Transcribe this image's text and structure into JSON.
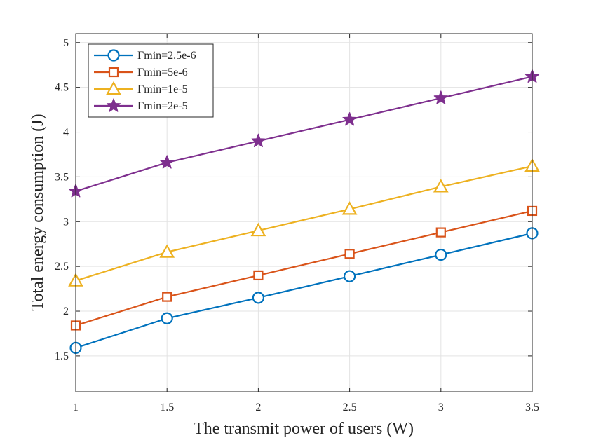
{
  "chart_data": {
    "type": "line",
    "title": "",
    "xlabel": "The transmit power of users (W)",
    "ylabel": "Total energy consumption (J)",
    "xlim": [
      1,
      3.5
    ],
    "ylim": [
      1.1,
      5.1
    ],
    "xticks": [
      1,
      1.5,
      2,
      2.5,
      3,
      3.5
    ],
    "xtick_labels": [
      "1",
      "1.5",
      "2",
      "2.5",
      "3",
      "3.5"
    ],
    "yticks": [
      1.5,
      2,
      2.5,
      3,
      3.5,
      4,
      4.5,
      5
    ],
    "ytick_labels": [
      "1.5",
      "2",
      "2.5",
      "3",
      "3.5",
      "4",
      "4.5",
      "5"
    ],
    "grid": true,
    "legend_position": "top-left",
    "x": [
      1,
      1.5,
      2,
      2.5,
      3,
      3.5
    ],
    "series": [
      {
        "name": "Γmin=2.5e-6",
        "color": "#0072BD",
        "marker": "circle",
        "values": [
          1.59,
          1.92,
          2.15,
          2.39,
          2.63,
          2.87
        ]
      },
      {
        "name": "Γmin=5e-6",
        "color": "#D95319",
        "marker": "square",
        "values": [
          1.84,
          2.16,
          2.4,
          2.64,
          2.88,
          3.12
        ]
      },
      {
        "name": "Γmin=1e-5",
        "color": "#EDB120",
        "marker": "triangle",
        "values": [
          2.34,
          2.66,
          2.9,
          3.14,
          3.39,
          3.62
        ]
      },
      {
        "name": "Γmin=2e-5",
        "color": "#7E2F8E",
        "marker": "star",
        "values": [
          3.34,
          3.66,
          3.9,
          4.14,
          4.38,
          4.62
        ]
      }
    ]
  }
}
